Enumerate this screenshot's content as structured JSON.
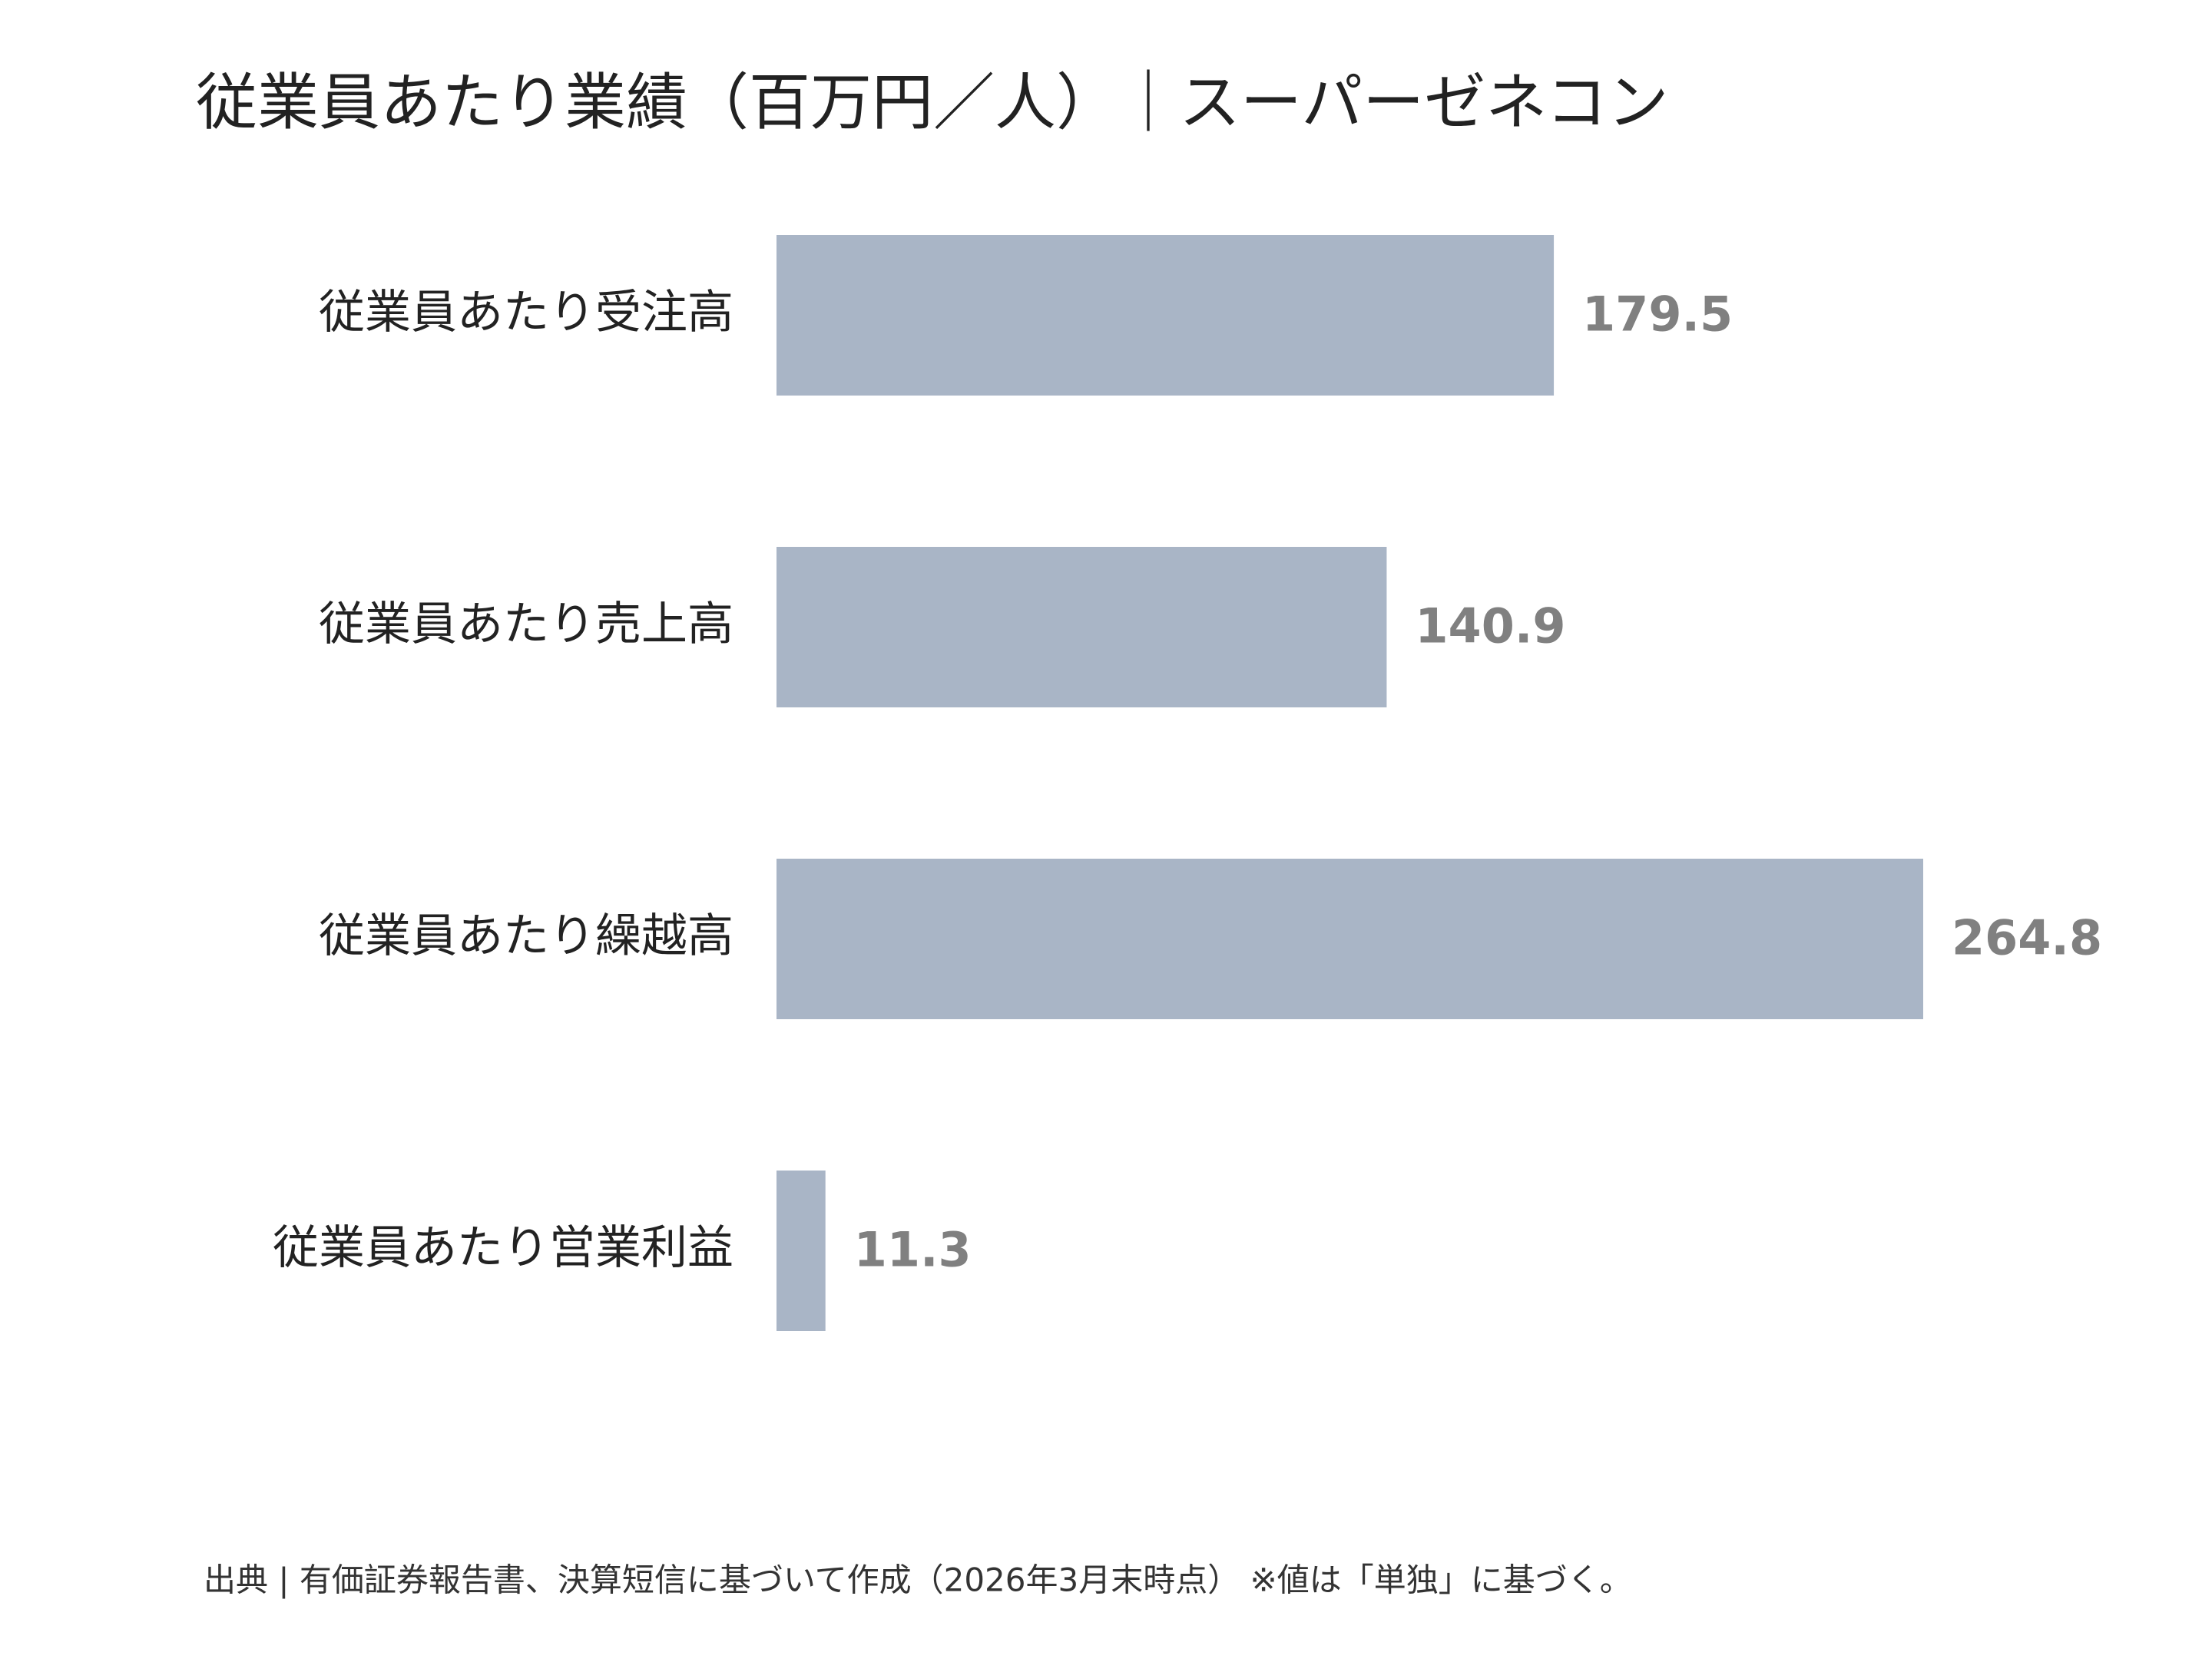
{
  "chart_data": {
    "type": "bar",
    "orientation": "horizontal",
    "title": "従業員あたり業績（百万円／人）｜スーパーゼネコン",
    "categories": [
      "従業員あたり受注高",
      "従業員あたり売上高",
      "従業員あたり繰越高",
      "従業員あたり営業利益"
    ],
    "values": [
      179.5,
      140.9,
      264.8,
      11.3
    ],
    "color": "#a9b5c6",
    "note": "出典 | 有価証券報告書、決算短信に基づいて作成（2026年3月末時点） ※値は「単独」に基づく。"
  }
}
